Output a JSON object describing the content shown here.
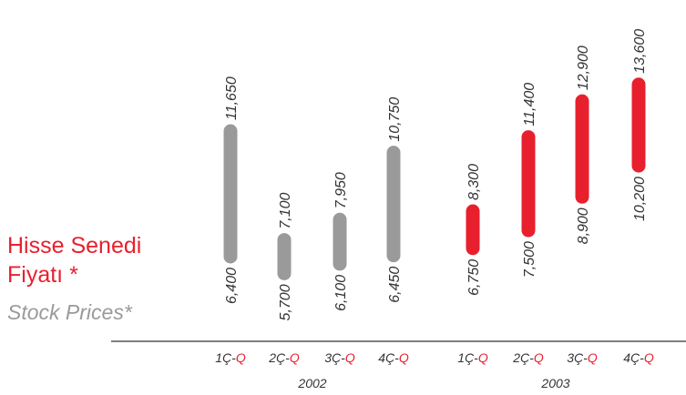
{
  "title": {
    "tr_line1": "Hisse Senedi",
    "tr_line2": "Fiyatı *",
    "en": "Stock Prices*"
  },
  "colors": {
    "y2002": "#9a9a9a",
    "y2003": "#e8202e",
    "text": "#333333",
    "axis": "#555555",
    "quarter_suffix": "#e8202e"
  },
  "chart_data": {
    "type": "bar",
    "subtype": "floating-range",
    "title": "Hisse Senedi Fiyatı * / Stock Prices*",
    "categories": [
      "1Ç-Q",
      "2Ç-Q",
      "3Ç-Q",
      "4Ç-Q",
      "1Ç-Q",
      "2Ç-Q",
      "3Ç-Q",
      "4Ç-Q"
    ],
    "groups": [
      {
        "label": "2002",
        "color": "#9a9a9a",
        "quarters": [
          {
            "prefix": "1Ç-",
            "suffix": "Q",
            "low": 6400,
            "high": 11650,
            "low_label": "6,400",
            "high_label": "11,650"
          },
          {
            "prefix": "2Ç-",
            "suffix": "Q",
            "low": 5700,
            "high": 7100,
            "low_label": "5,700",
            "high_label": "7,100"
          },
          {
            "prefix": "3Ç-",
            "suffix": "Q",
            "low": 6100,
            "high": 7950,
            "low_label": "6,100",
            "high_label": "7,950"
          },
          {
            "prefix": "4Ç-",
            "suffix": "Q",
            "low": 6450,
            "high": 10750,
            "low_label": "6,450",
            "high_label": "10,750"
          }
        ]
      },
      {
        "label": "2003",
        "color": "#e8202e",
        "quarters": [
          {
            "prefix": "1Ç-",
            "suffix": "Q",
            "low": 6750,
            "high": 8300,
            "low_label": "6,750",
            "high_label": "8,300"
          },
          {
            "prefix": "2Ç-",
            "suffix": "Q",
            "low": 7500,
            "high": 11400,
            "low_label": "7,500",
            "high_label": "11,400"
          },
          {
            "prefix": "3Ç-",
            "suffix": "Q",
            "low": 8900,
            "high": 12900,
            "low_label": "8,900",
            "high_label": "12,900"
          },
          {
            "prefix": "4Ç-",
            "suffix": "Q",
            "low": 10200,
            "high": 13600,
            "low_label": "10,200",
            "high_label": "13,600"
          }
        ]
      }
    ],
    "grid": false,
    "legend": "none"
  }
}
